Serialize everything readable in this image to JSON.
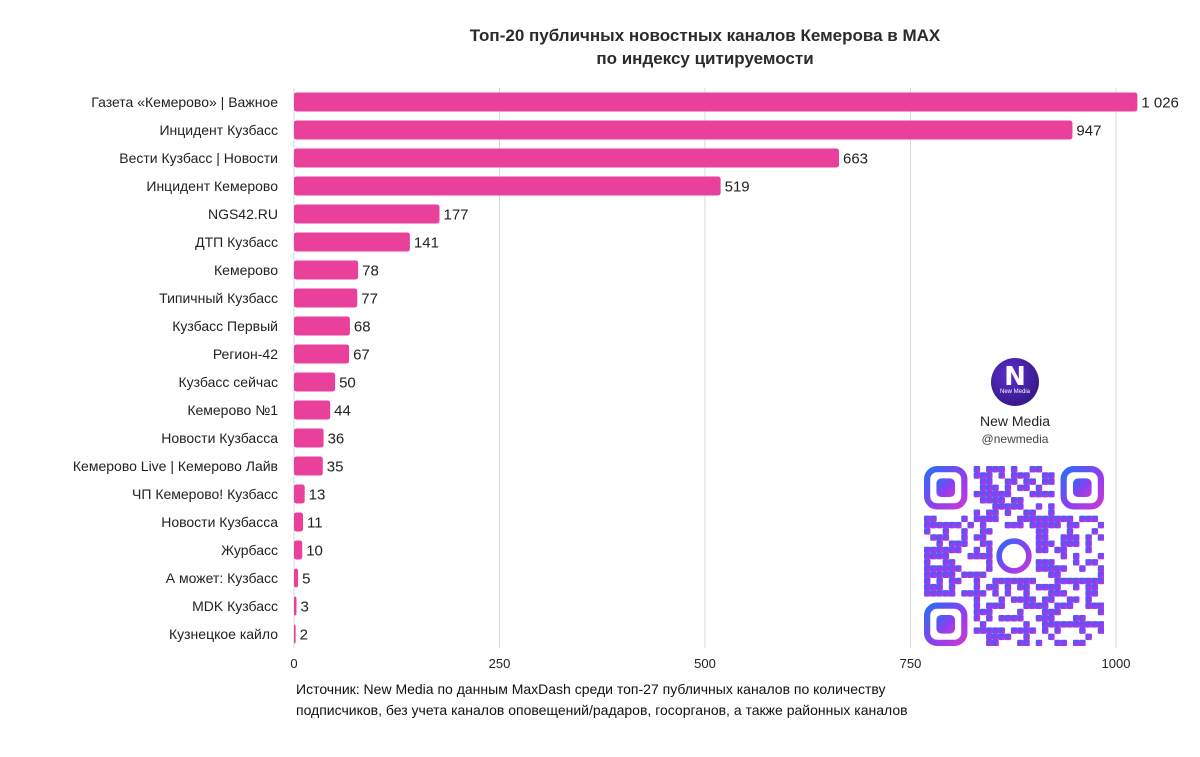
{
  "header": {
    "title_line1": "Топ-20 публичных новостных каналов Кемерова в MAX",
    "title_line2": "по индексу цитируемости"
  },
  "chart_data": {
    "type": "bar",
    "orientation": "horizontal",
    "title": "Топ-20 публичных новостных каналов Кемерова в MAX по индексу цитируемости",
    "categories": [
      "Газета «Кемерово» | Важное",
      "Инцидент Кузбасс",
      "Вести Кузбасс | Новости",
      "Инцидент Кемерово",
      "NGS42.RU",
      "ДТП Кузбасс",
      "Кемерово",
      "Типичный Кузбасс",
      "Кузбасс Первый",
      "Регион-42",
      "Кузбасс сейчас",
      "Кемерово №1",
      "Новости Кузбасса",
      "Кемерово Live | Кемерово Лайв",
      "ЧП Кемерово! Кузбасс",
      "Новости Кузбасса",
      "Журбасс",
      "А может: Кузбасс",
      "MDK Кузбасс",
      "Кузнецкое кайло"
    ],
    "values": [
      1026,
      947,
      663,
      519,
      177,
      141,
      78,
      77,
      68,
      67,
      50,
      44,
      36,
      35,
      13,
      11,
      10,
      5,
      3,
      2
    ],
    "value_labels": [
      "1 026",
      "947",
      "663",
      "519",
      "177",
      "141",
      "78",
      "77",
      "68",
      "67",
      "50",
      "44",
      "36",
      "35",
      "13",
      "11",
      "10",
      "5",
      "3",
      "2"
    ],
    "xticks": [
      0,
      250,
      500,
      750,
      1000
    ],
    "xlim": [
      0,
      1000
    ],
    "grid": "vertical",
    "bar_color": "#e8409b",
    "legend": "none"
  },
  "source": {
    "line1": "Источник: New Media по данным MaxDash среди топ-27 публичных каналов по количеству",
    "line2": "подписчиков, без учета каналов оповещений/радаров, госорганов, а также районных каналов"
  },
  "brand": {
    "logo_letter": "N",
    "logo_text": "New Media",
    "name": "New Media",
    "handle": "@newmedia",
    "qr_gradient": [
      "#2b6cf6",
      "#8b3ff0",
      "#c43ad6"
    ]
  }
}
